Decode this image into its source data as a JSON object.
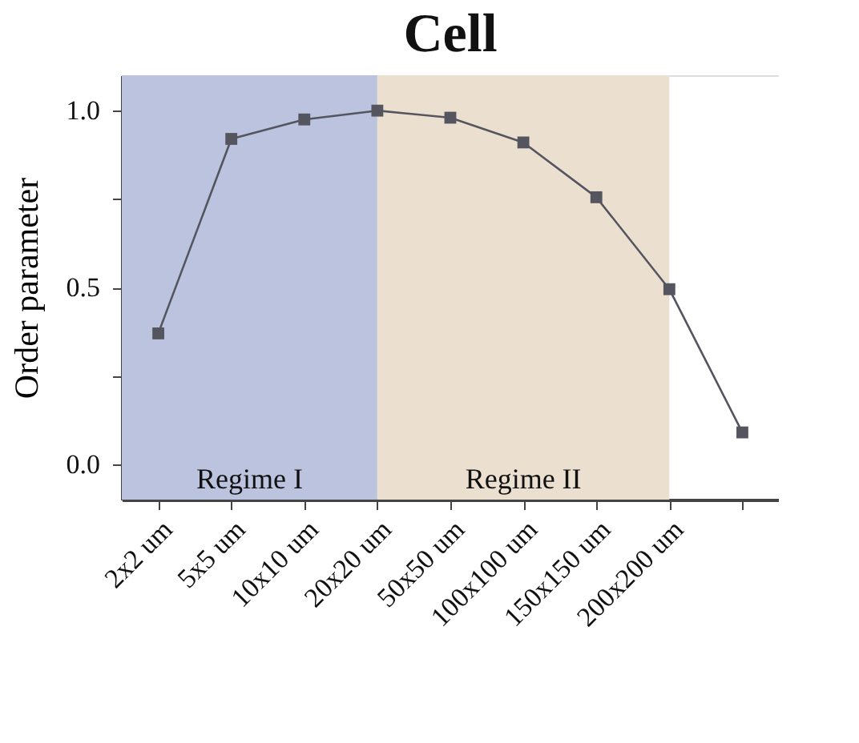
{
  "chart_data": {
    "type": "line",
    "title": "Cell",
    "ylabel": "Order parameter",
    "categories": [
      "2x2 um",
      "5x5 um",
      "10x10 um",
      "20x20 um",
      "50x50 um",
      "100x100 um",
      "150x150 um",
      "200x200 um",
      null
    ],
    "series": [
      {
        "color": "#555560",
        "values": [
          0.37,
          0.92,
          0.975,
          1.0,
          0.98,
          0.91,
          0.755,
          0.495,
          0.09
        ]
      }
    ],
    "ylim": [
      -0.1,
      1.1
    ],
    "yticks": [
      {
        "value": 0,
        "label": "0.0"
      },
      {
        "value": 0.25,
        "label": null
      },
      {
        "value": 0.5,
        "label": "0.5"
      },
      {
        "value": 0.75,
        "label": null
      },
      {
        "value": 1,
        "label": "1.0"
      }
    ],
    "marker": "square",
    "line_style": "solid",
    "bands": [
      {
        "axis": "x",
        "from": "2x2 um",
        "to": "20x20 um",
        "label": "Regime I",
        "color": "#bcc3de"
      },
      {
        "axis": "x",
        "from": "20x20 um",
        "to": "200x200 um",
        "label": "Regime II",
        "color": "#ebdfd0"
      }
    ]
  }
}
